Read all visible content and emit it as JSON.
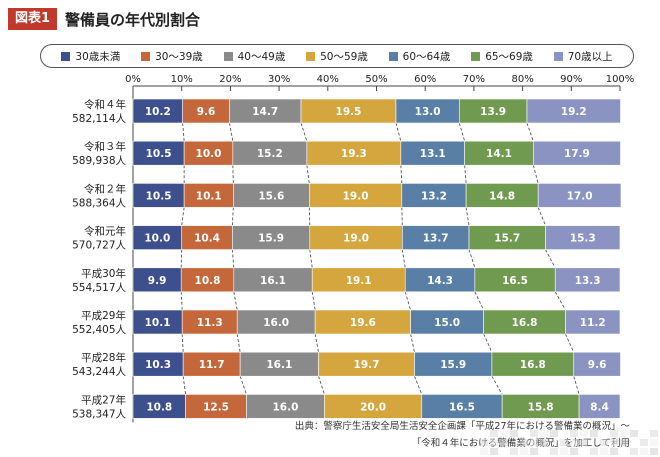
{
  "header": {
    "badge": "図表1",
    "title": "警備員の年代別割合"
  },
  "colors": {
    "badge": "#c0392b",
    "series": [
      "#3d4f8c",
      "#c4673a",
      "#8a8a8a",
      "#d6a63e",
      "#5a7fa6",
      "#6f9a4f",
      "#8a93c2"
    ]
  },
  "chart_data": {
    "type": "bar",
    "orientation": "horizontal-stacked-100",
    "title": "",
    "xlim": [
      0,
      100
    ],
    "ticks": [
      "0%",
      "10%",
      "20%",
      "30%",
      "40%",
      "50%",
      "60%",
      "70%",
      "80%",
      "90%",
      "100%"
    ],
    "legend_position": "top",
    "categories": [
      {
        "year": "令和４年",
        "count": "582,114人"
      },
      {
        "year": "令和３年",
        "count": "589,938人"
      },
      {
        "year": "令和２年",
        "count": "588,364人"
      },
      {
        "year": "令和元年",
        "count": "570,727人"
      },
      {
        "year": "平成30年",
        "count": "554,517人"
      },
      {
        "year": "平成29年",
        "count": "552,405人"
      },
      {
        "year": "平成28年",
        "count": "543,244人"
      },
      {
        "year": "平成27年",
        "count": "538,347人"
      }
    ],
    "series": [
      {
        "name": "30歳未満",
        "values": [
          10.2,
          10.5,
          10.5,
          10.0,
          9.9,
          10.1,
          10.3,
          10.8
        ]
      },
      {
        "name": "30〜39歳",
        "values": [
          9.6,
          10.0,
          10.1,
          10.4,
          10.8,
          11.3,
          11.7,
          12.5
        ]
      },
      {
        "name": "40〜49歳",
        "values": [
          14.7,
          15.2,
          15.6,
          15.9,
          16.1,
          16.0,
          16.1,
          16.0
        ]
      },
      {
        "name": "50〜59歳",
        "values": [
          19.5,
          19.3,
          19.0,
          19.0,
          19.1,
          19.6,
          19.7,
          20.0
        ]
      },
      {
        "name": "60〜64歳",
        "values": [
          13.0,
          13.1,
          13.2,
          13.7,
          14.3,
          15.0,
          15.9,
          16.5
        ]
      },
      {
        "name": "65〜69歳",
        "values": [
          13.9,
          14.1,
          14.8,
          15.7,
          16.5,
          16.8,
          16.8,
          15.8
        ]
      },
      {
        "name": "70歳以上",
        "values": [
          19.2,
          17.9,
          17.0,
          15.3,
          13.3,
          11.2,
          9.6,
          8.4
        ]
      }
    ]
  },
  "source": {
    "line1": "出典：警察庁生活安全局生活安全企画課「平成27年における警備業の概況」〜",
    "line2": "「令和４年における警備業の概況」を加工して利用"
  }
}
